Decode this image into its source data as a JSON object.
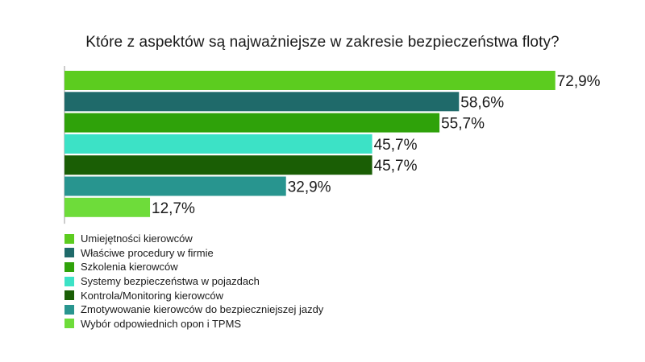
{
  "chart_data": {
    "type": "bar",
    "orientation": "horizontal",
    "title": "Które z aspektów są najważniejsze w zakresie bezpieczeństwa floty?",
    "xlabel": "",
    "ylabel": "",
    "xlim": [
      0,
      100
    ],
    "grid": false,
    "legend_position": "bottom-left",
    "value_suffix": "%",
    "categories": [
      "Umiejętności kierowców",
      "Właściwe procedury w firmie",
      "Szkolenia kierowców",
      "Systemy bezpieczeństwa w pojazdach",
      "Kontrola/Monitoring kierowców",
      "Zmotywowanie kierowców do bezpieczniejszej jazdy",
      "Wybór odpowiednich opon i TPMS"
    ],
    "values": [
      72.9,
      58.6,
      55.7,
      45.7,
      45.7,
      32.9,
      12.7
    ],
    "value_labels": [
      "72,9%",
      "58,6%",
      "55,7%",
      "45,7%",
      "45,7%",
      "32,9%",
      "12,7%"
    ],
    "colors": [
      "#5ccc1f",
      "#1f6a6a",
      "#2fa20a",
      "#3ce2c6",
      "#1a5e05",
      "#28958f",
      "#6edc3a"
    ]
  }
}
